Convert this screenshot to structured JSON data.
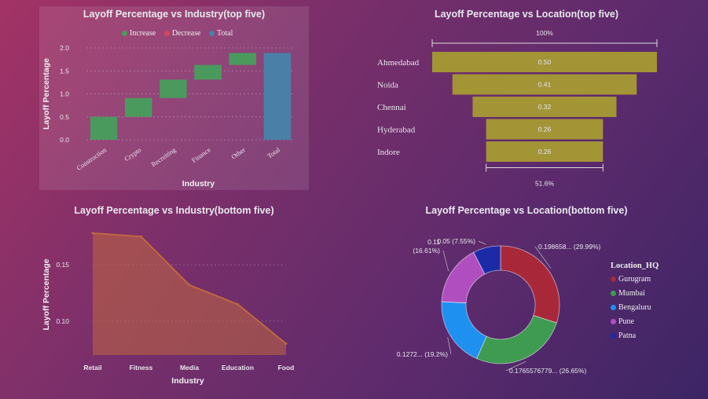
{
  "chart_data": [
    {
      "type": "waterfall",
      "title": "Layoff Percentage vs Industry(top five)",
      "xlabel": "Industry",
      "ylabel": "Layoff Percentage",
      "categories": [
        "Construction",
        "Crypto",
        "Recruiting",
        "Finance",
        "Other",
        "Total"
      ],
      "values": [
        0.5,
        0.41,
        0.4,
        0.32,
        0.26,
        1.89
      ],
      "kinds": [
        "increase",
        "increase",
        "increase",
        "increase",
        "increase",
        "total"
      ],
      "ylim": [
        0,
        2.0
      ],
      "yticks": [
        "0.0",
        "0.5",
        "1.0",
        "1.5",
        "2.0"
      ],
      "legend": [
        "Increase",
        "Decrease",
        "Total"
      ],
      "colors": {
        "increase": "#4a9a5e",
        "decrease": "#d2485c",
        "total": "#4a7fa8"
      }
    },
    {
      "type": "funnel",
      "title": "Layoff Percentage vs Location(top five)",
      "categories": [
        "Ahmedabad",
        "Noida",
        "Chennai",
        "Hyderabad",
        "Indore"
      ],
      "values": [
        0.5,
        0.41,
        0.32,
        0.26,
        0.26
      ],
      "value_labels": [
        "0.50",
        "0.41",
        "0.32",
        "0.26",
        "0.26"
      ],
      "top_label": "100%",
      "bottom_label": "51.6%",
      "color": "#a39436"
    },
    {
      "type": "area",
      "title": "Layoff Percentage vs Industry(bottom five)",
      "xlabel": "Industry",
      "ylabel": "Layoff Percentage",
      "categories": [
        "Retail",
        "Fitness",
        "Media",
        "Education",
        "Food"
      ],
      "values": [
        0.178,
        0.175,
        0.132,
        0.115,
        0.08
      ],
      "ylim": [
        0.07,
        0.18
      ],
      "yticks": [
        0.1,
        0.15
      ],
      "ytick_labels": [
        "0.10",
        "0.15"
      ],
      "color": "#c06840"
    },
    {
      "type": "donut",
      "title": "Layoff Percentage vs Location(bottom five)",
      "legend_title": "Location_HQ",
      "labels": [
        "Gurugram",
        "Mumbai",
        "Bengaluru",
        "Pune",
        "Patna"
      ],
      "values": [
        29.99,
        26.65,
        19.2,
        16.61,
        7.55
      ],
      "data_labels": [
        "0.198658... (29.99%)",
        "0.1765576779... (26.65%)",
        "0.1272... (19.2%)",
        "0.11\n(16.61%)",
        "0.05 (7.55%)"
      ],
      "colors": [
        "#a8283a",
        "#3f9a52",
        "#1e90f0",
        "#b04ec0",
        "#1d2aa8"
      ]
    }
  ]
}
